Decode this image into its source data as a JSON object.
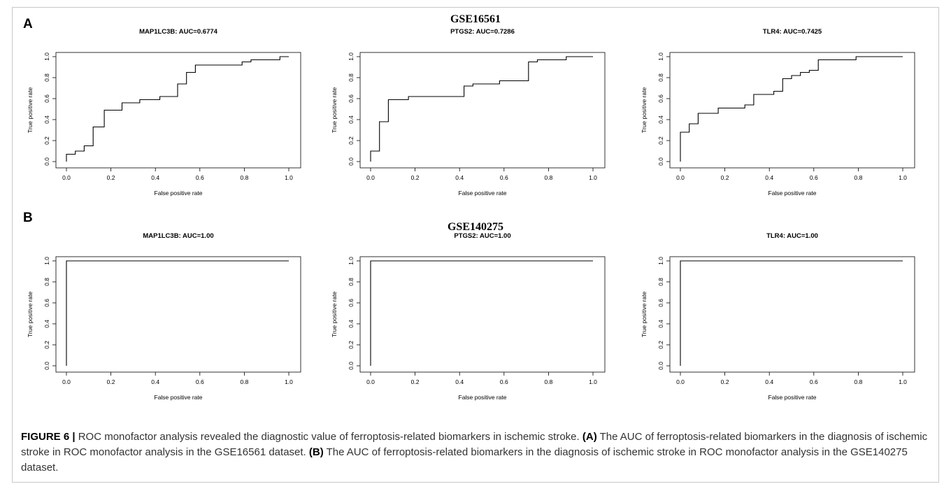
{
  "figure": {
    "panel_a_letter": "A",
    "panel_b_letter": "B",
    "dataset_a": "GSE16561",
    "dataset_b": "GSE140275",
    "caption_label": "FIGURE 6 |",
    "caption_text_1": " ROC monofactor analysis revealed the diagnostic value of ferroptosis-related biomarkers in ischemic stroke. ",
    "caption_ref_a": "(A)",
    "caption_text_2": " The AUC of ferroptosis-related biomarkers in the diagnosis of ischemic stroke in ROC monofactor analysis in the GSE16561 dataset. ",
    "caption_ref_b": "(B)",
    "caption_text_3": " The AUC of ferroptosis-related biomarkers in the diagnosis of ischemic stroke in ROC monofactor analysis in the GSE140275 dataset."
  },
  "chart_data": [
    {
      "type": "line",
      "title": "MAP1LC3B: AUC=0.6774",
      "xlabel": "False positive rate",
      "ylabel": "True positive rate",
      "xlim": [
        0,
        1
      ],
      "ylim": [
        0,
        1
      ],
      "xticks": [
        "0.0",
        "0.2",
        "0.4",
        "0.6",
        "0.8",
        "1.0"
      ],
      "yticks": [
        "0.0",
        "0.2",
        "0.4",
        "0.6",
        "0.8",
        "1.0"
      ],
      "x": [
        0,
        0,
        0.04,
        0.04,
        0.08,
        0.08,
        0.12,
        0.12,
        0.17,
        0.17,
        0.25,
        0.25,
        0.33,
        0.33,
        0.42,
        0.42,
        0.5,
        0.5,
        0.54,
        0.54,
        0.58,
        0.58,
        0.79,
        0.79,
        0.83,
        0.83,
        0.96,
        0.96,
        1
      ],
      "y": [
        0,
        0.07,
        0.07,
        0.1,
        0.1,
        0.15,
        0.15,
        0.33,
        0.33,
        0.49,
        0.49,
        0.56,
        0.56,
        0.59,
        0.59,
        0.62,
        0.62,
        0.74,
        0.74,
        0.85,
        0.85,
        0.92,
        0.92,
        0.95,
        0.95,
        0.97,
        0.97,
        1,
        1
      ]
    },
    {
      "type": "line",
      "title": "PTGS2: AUC=0.7286",
      "xlabel": "False positive rate",
      "ylabel": "True positive rate",
      "xlim": [
        0,
        1
      ],
      "ylim": [
        0,
        1
      ],
      "xticks": [
        "0.0",
        "0.2",
        "0.4",
        "0.6",
        "0.8",
        "1.0"
      ],
      "yticks": [
        "0.0",
        "0.2",
        "0.4",
        "0.6",
        "0.8",
        "1.0"
      ],
      "x": [
        0,
        0,
        0.04,
        0.04,
        0.08,
        0.08,
        0.17,
        0.17,
        0.42,
        0.42,
        0.46,
        0.46,
        0.58,
        0.58,
        0.71,
        0.71,
        0.75,
        0.75,
        0.88,
        0.88,
        1
      ],
      "y": [
        0,
        0.1,
        0.1,
        0.38,
        0.38,
        0.59,
        0.59,
        0.62,
        0.62,
        0.72,
        0.72,
        0.74,
        0.74,
        0.77,
        0.77,
        0.95,
        0.95,
        0.97,
        0.97,
        1,
        1
      ]
    },
    {
      "type": "line",
      "title": "TLR4: AUC=0.7425",
      "xlabel": "False positive rate",
      "ylabel": "True positive rate",
      "xlim": [
        0,
        1
      ],
      "ylim": [
        0,
        1
      ],
      "xticks": [
        "0.0",
        "0.2",
        "0.4",
        "0.6",
        "0.8",
        "1.0"
      ],
      "yticks": [
        "0.0",
        "0.2",
        "0.4",
        "0.6",
        "0.8",
        "1.0"
      ],
      "x": [
        0,
        0,
        0.04,
        0.04,
        0.08,
        0.08,
        0.17,
        0.17,
        0.29,
        0.29,
        0.33,
        0.33,
        0.42,
        0.42,
        0.46,
        0.46,
        0.5,
        0.5,
        0.54,
        0.54,
        0.58,
        0.58,
        0.62,
        0.62,
        0.79,
        0.79,
        1
      ],
      "y": [
        0,
        0.28,
        0.28,
        0.36,
        0.36,
        0.46,
        0.46,
        0.51,
        0.51,
        0.54,
        0.54,
        0.64,
        0.64,
        0.67,
        0.67,
        0.79,
        0.79,
        0.82,
        0.82,
        0.85,
        0.85,
        0.87,
        0.87,
        0.97,
        0.97,
        1,
        1
      ]
    },
    {
      "type": "line",
      "title": "MAP1LC3B: AUC=1.00",
      "xlabel": "False positive rate",
      "ylabel": "True positive rate",
      "xlim": [
        0,
        1
      ],
      "ylim": [
        0,
        1
      ],
      "xticks": [
        "0.0",
        "0.2",
        "0.4",
        "0.6",
        "0.8",
        "1.0"
      ],
      "yticks": [
        "0.0",
        "0.2",
        "0.4",
        "0.6",
        "0.8",
        "1.0"
      ],
      "x": [
        0,
        0,
        1
      ],
      "y": [
        0,
        1,
        1
      ]
    },
    {
      "type": "line",
      "title": "PTGS2: AUC=1.00",
      "xlabel": "False positive rate",
      "ylabel": "True positive rate",
      "xlim": [
        0,
        1
      ],
      "ylim": [
        0,
        1
      ],
      "xticks": [
        "0.0",
        "0.2",
        "0.4",
        "0.6",
        "0.8",
        "1.0"
      ],
      "yticks": [
        "0.0",
        "0.2",
        "0.4",
        "0.6",
        "0.8",
        "1.0"
      ],
      "x": [
        0,
        0,
        1
      ],
      "y": [
        0,
        1,
        1
      ]
    },
    {
      "type": "line",
      "title": "TLR4: AUC=1.00",
      "xlabel": "False positive rate",
      "ylabel": "True positive rate",
      "xlim": [
        0,
        1
      ],
      "ylim": [
        0,
        1
      ],
      "xticks": [
        "0.0",
        "0.2",
        "0.4",
        "0.6",
        "0.8",
        "1.0"
      ],
      "yticks": [
        "0.0",
        "0.2",
        "0.4",
        "0.6",
        "0.8",
        "1.0"
      ],
      "x": [
        0,
        0,
        1
      ],
      "y": [
        0,
        1,
        1
      ]
    }
  ]
}
